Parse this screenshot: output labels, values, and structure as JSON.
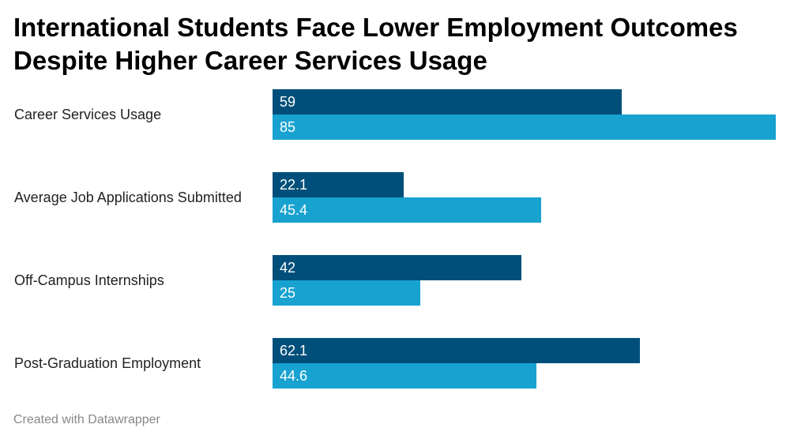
{
  "title": "International Students Face Lower Employment Outcomes Despite Higher Career Services Usage",
  "footer": "Created with Datawrapper",
  "colors": {
    "series_a": "#004f7a",
    "series_b": "#17a2d0"
  },
  "chart_data": {
    "type": "bar",
    "orientation": "horizontal",
    "categories": [
      "Career Services Usage",
      "Average Job Applications Submitted",
      "Off-Campus Internships",
      "Post-Graduation Employment"
    ],
    "series": [
      {
        "values": [
          59,
          22.1,
          42,
          62.1
        ],
        "labels": [
          "59",
          "22.1",
          "42",
          "62.1"
        ]
      },
      {
        "values": [
          85,
          45.4,
          25,
          44.6
        ],
        "labels": [
          "85",
          "45.4",
          "25",
          "44.6"
        ]
      }
    ],
    "xlim": [
      0,
      85
    ],
    "grid": false,
    "legend": "none",
    "data_labels": "inside-left"
  }
}
